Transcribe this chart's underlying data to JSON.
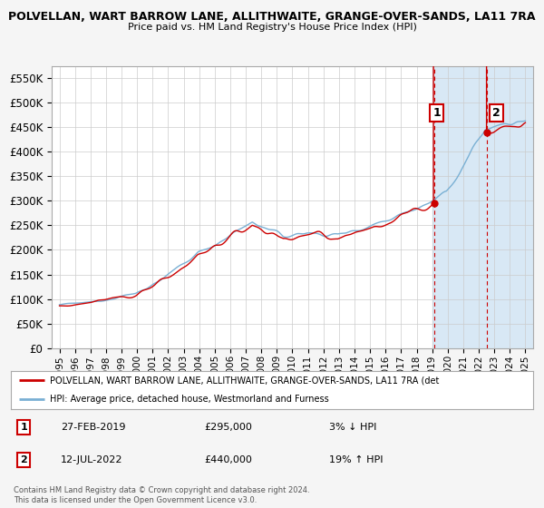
{
  "title": "POLVELLAN, WART BARROW LANE, ALLITHWAITE, GRANGE-OVER-SANDS, LA11 7RA",
  "subtitle": "Price paid vs. HM Land Registry's House Price Index (HPI)",
  "ylim": [
    0,
    575000
  ],
  "yticks": [
    0,
    50000,
    100000,
    150000,
    200000,
    250000,
    300000,
    350000,
    400000,
    450000,
    500000,
    550000
  ],
  "background_color": "#f5f5f5",
  "plot_background": "#ffffff",
  "grid_color": "#cccccc",
  "red_line_color": "#cc0000",
  "blue_line_color": "#7ab0d4",
  "dashed_line_color": "#cc0000",
  "shaded_region_color": "#d8e8f5",
  "point1_x": 2019.15,
  "point1_y": 295000,
  "point1_label": "1",
  "point2_x": 2022.53,
  "point2_y": 440000,
  "point2_label": "2",
  "shade_start": 2019.0,
  "xmin": 1994.5,
  "xmax": 2025.5,
  "legend_line1": "POLVELLAN, WART BARROW LANE, ALLITHWAITE, GRANGE-OVER-SANDS, LA11 7RA (det",
  "legend_line2": "HPI: Average price, detached house, Westmorland and Furness",
  "annotation1_date": "27-FEB-2019",
  "annotation1_price": "£295,000",
  "annotation1_hpi": "3% ↓ HPI",
  "annotation2_date": "12-JUL-2022",
  "annotation2_price": "£440,000",
  "annotation2_hpi": "19% ↑ HPI",
  "footer": "Contains HM Land Registry data © Crown copyright and database right 2024.\nThis data is licensed under the Open Government Licence v3.0."
}
